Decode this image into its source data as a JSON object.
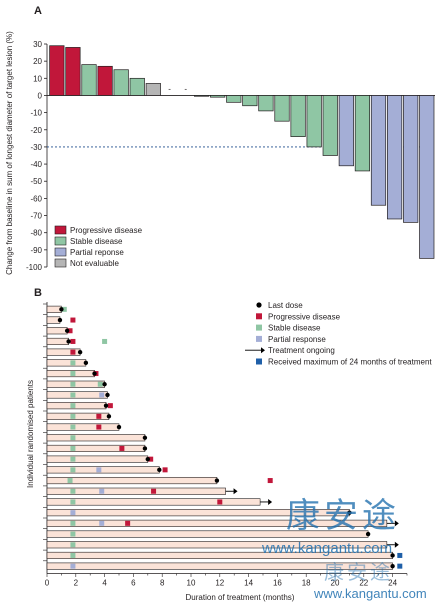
{
  "chart_data": [
    {
      "type": "bar",
      "panel": "A",
      "ylabel": "Change from baseline in sum of longest diameter of target lesion (%)",
      "ylim": [
        -100,
        30
      ],
      "yticks": [
        30,
        20,
        10,
        0,
        -10,
        -20,
        -30,
        -40,
        -50,
        -60,
        -70,
        -80,
        -90,
        -100
      ],
      "reference_line": -30,
      "legend_position": "bottom-left",
      "legend": [
        {
          "label": "Progressive disease",
          "color": "#c1173a"
        },
        {
          "label": "Stable disease",
          "color": "#8fc6a4"
        },
        {
          "label": "Partial reponse",
          "color": "#a4aed6"
        },
        {
          "label": "Not evaluable",
          "color": "#b5b5b5"
        }
      ],
      "bars": [
        {
          "value": 29,
          "status": "Progressive disease"
        },
        {
          "value": 28,
          "status": "Progressive disease"
        },
        {
          "value": 18,
          "status": "Stable disease"
        },
        {
          "value": 17,
          "status": "Progressive disease"
        },
        {
          "value": 15,
          "status": "Stable disease"
        },
        {
          "value": 10,
          "status": "Stable disease"
        },
        {
          "value": 7,
          "status": "Not evaluable"
        },
        {
          "value": 0,
          "status": "Not evaluable",
          "marker": "-"
        },
        {
          "value": 0,
          "status": "Not evaluable",
          "marker": "-"
        },
        {
          "value": 0,
          "status": "Stable disease"
        },
        {
          "value": -1,
          "status": "Stable disease"
        },
        {
          "value": -4,
          "status": "Stable disease"
        },
        {
          "value": -6,
          "status": "Stable disease"
        },
        {
          "value": -9,
          "status": "Stable disease"
        },
        {
          "value": -15,
          "status": "Stable disease"
        },
        {
          "value": -24,
          "status": "Stable disease"
        },
        {
          "value": -30,
          "status": "Stable disease"
        },
        {
          "value": -35,
          "status": "Stable disease"
        },
        {
          "value": -41,
          "status": "Partial reponse"
        },
        {
          "value": -44,
          "status": "Stable disease"
        },
        {
          "value": -64,
          "status": "Partial reponse"
        },
        {
          "value": -72,
          "status": "Partial reponse"
        },
        {
          "value": -74,
          "status": "Partial reponse"
        },
        {
          "value": -95,
          "status": "Partial reponse"
        }
      ]
    },
    {
      "type": "swimmer",
      "panel": "B",
      "xlabel": "Duration of treatment (months)",
      "ylabel": "Individual randomised patients",
      "xlim": [
        0,
        25
      ],
      "xticks": [
        0,
        2,
        4,
        6,
        8,
        10,
        12,
        14,
        16,
        18,
        20,
        22,
        24
      ],
      "legend_position": "top-right",
      "legend": [
        {
          "label": "Last dose",
          "symbol": "dot",
          "color": "#000000"
        },
        {
          "label": "Progressive disease",
          "symbol": "square",
          "color": "#c1173a"
        },
        {
          "label": "Stable disease",
          "symbol": "square",
          "color": "#8fc6a4"
        },
        {
          "label": "Partial response",
          "symbol": "square",
          "color": "#a4aed6"
        },
        {
          "label": "Treatment ongoing",
          "symbol": "arrow",
          "color": "#000000"
        },
        {
          "label": "Received maximum of 24 months of treatment",
          "symbol": "square",
          "color": "#1f5fa8"
        }
      ],
      "patients": [
        {
          "duration": 1.0,
          "end": "dose",
          "markers": [
            {
              "x": 1.2,
              "s": "SD"
            }
          ]
        },
        {
          "duration": 0.9,
          "end": "dose",
          "markers": [
            {
              "x": 1.8,
              "s": "PD"
            }
          ]
        },
        {
          "duration": 1.4,
          "end": "dose",
          "markers": [
            {
              "x": 1.6,
              "s": "PD"
            }
          ]
        },
        {
          "duration": 1.5,
          "end": "dose",
          "markers": [
            {
              "x": 1.8,
              "s": "PD"
            },
            {
              "x": 4.0,
              "s": "SD"
            }
          ]
        },
        {
          "duration": 2.3,
          "end": "dose",
          "markers": [
            {
              "x": 1.8,
              "s": "PD"
            }
          ]
        },
        {
          "duration": 2.7,
          "end": "dose",
          "markers": [
            {
              "x": 1.8,
              "s": "SD"
            }
          ]
        },
        {
          "duration": 3.3,
          "end": "dose",
          "markers": [
            {
              "x": 1.8,
              "s": "SD"
            },
            {
              "x": 3.4,
              "s": "PD"
            }
          ]
        },
        {
          "duration": 4.0,
          "end": "dose",
          "markers": [
            {
              "x": 1.8,
              "s": "SD"
            },
            {
              "x": 3.7,
              "s": "SD"
            }
          ]
        },
        {
          "duration": 4.2,
          "end": "dose",
          "markers": [
            {
              "x": 1.8,
              "s": "SD"
            },
            {
              "x": 3.8,
              "s": "PR"
            }
          ]
        },
        {
          "duration": 4.1,
          "end": "dose",
          "markers": [
            {
              "x": 1.8,
              "s": "SD"
            },
            {
              "x": 4.4,
              "s": "PD"
            }
          ]
        },
        {
          "duration": 4.3,
          "end": "dose",
          "markers": [
            {
              "x": 1.8,
              "s": "SD"
            },
            {
              "x": 3.6,
              "s": "PD"
            }
          ]
        },
        {
          "duration": 5.0,
          "end": "dose",
          "markers": [
            {
              "x": 1.8,
              "s": "SD"
            },
            {
              "x": 3.6,
              "s": "PD"
            }
          ]
        },
        {
          "duration": 6.8,
          "end": "dose",
          "markers": [
            {
              "x": 1.8,
              "s": "SD"
            }
          ]
        },
        {
          "duration": 6.8,
          "end": "dose",
          "markers": [
            {
              "x": 1.8,
              "s": "SD"
            },
            {
              "x": 5.2,
              "s": "PD"
            }
          ]
        },
        {
          "duration": 7.0,
          "end": "dose",
          "markers": [
            {
              "x": 1.8,
              "s": "SD"
            },
            {
              "x": 7.2,
              "s": "PD"
            }
          ]
        },
        {
          "duration": 7.8,
          "end": "dose",
          "markers": [
            {
              "x": 1.8,
              "s": "SD"
            },
            {
              "x": 3.6,
              "s": "PR"
            },
            {
              "x": 8.2,
              "s": "PD"
            }
          ]
        },
        {
          "duration": 11.8,
          "end": "dose",
          "markers": [
            {
              "x": 1.6,
              "s": "SD"
            },
            {
              "x": 15.5,
              "s": "PD"
            }
          ]
        },
        {
          "duration": 12.4,
          "end": "arrow",
          "markers": [
            {
              "x": 1.8,
              "s": "SD"
            },
            {
              "x": 3.8,
              "s": "PR"
            },
            {
              "x": 7.4,
              "s": "PD"
            }
          ]
        },
        {
          "duration": 14.8,
          "end": "arrow",
          "markers": [
            {
              "x": 1.8,
              "s": "SD"
            },
            {
              "x": 12.0,
              "s": "PD"
            }
          ]
        },
        {
          "duration": 21.0,
          "end": "dose",
          "markers": [
            {
              "x": 1.8,
              "s": "PR"
            }
          ]
        },
        {
          "duration": 23.6,
          "end": "arrow",
          "markers": [
            {
              "x": 1.8,
              "s": "SD"
            },
            {
              "x": 3.8,
              "s": "PR"
            },
            {
              "x": 5.6,
              "s": "PD"
            }
          ]
        },
        {
          "duration": 22.3,
          "end": "dose",
          "markers": [
            {
              "x": 1.8,
              "s": "SD"
            }
          ]
        },
        {
          "duration": 23.6,
          "end": "arrow",
          "markers": [
            {
              "x": 1.8,
              "s": "SD"
            }
          ]
        },
        {
          "duration": 24.0,
          "end": "dose",
          "markers": [
            {
              "x": 1.8,
              "s": "SD"
            },
            {
              "x": 24.5,
              "s": "MAX"
            }
          ]
        },
        {
          "duration": 24.0,
          "end": "dose",
          "markers": [
            {
              "x": 1.8,
              "s": "PR"
            },
            {
              "x": 24.5,
              "s": "MAX"
            }
          ]
        }
      ]
    }
  ],
  "watermark": {
    "text": "康安途",
    "url": "www.kangantu.com"
  }
}
